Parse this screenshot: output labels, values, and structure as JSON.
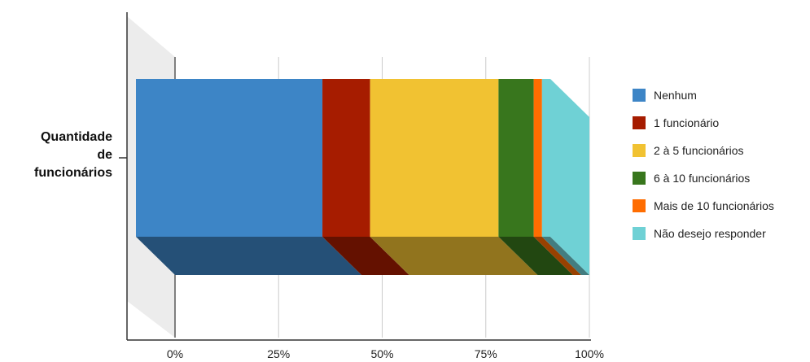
{
  "chart_data": {
    "type": "bar",
    "orientation": "horizontal",
    "stacked": "percent",
    "style": "3d",
    "categories": [
      "Quantidade\nde\nfuncionários"
    ],
    "series": [
      {
        "name": "Nenhum",
        "values": [
          45.0
        ],
        "color": "#3d85c6"
      },
      {
        "name": "1 funcionário",
        "values": [
          11.5
        ],
        "color": "#a61c00"
      },
      {
        "name": "2 à 5 funcionários",
        "values": [
          31.0
        ],
        "color": "#f1c232"
      },
      {
        "name": "6 à 10 funcionários",
        "values": [
          8.5
        ],
        "color": "#38761d"
      },
      {
        "name": "Mais de 10 funcionários",
        "values": [
          2.0
        ],
        "color": "#ff6d01"
      },
      {
        "name": "Não desejo responder",
        "values": [
          2.0
        ],
        "color": "#6fd1d5"
      }
    ],
    "xlim": [
      0,
      100
    ],
    "x_ticks": [
      "0%",
      "25%",
      "50%",
      "75%",
      "100%"
    ],
    "grid": true,
    "legend_position": "right"
  }
}
